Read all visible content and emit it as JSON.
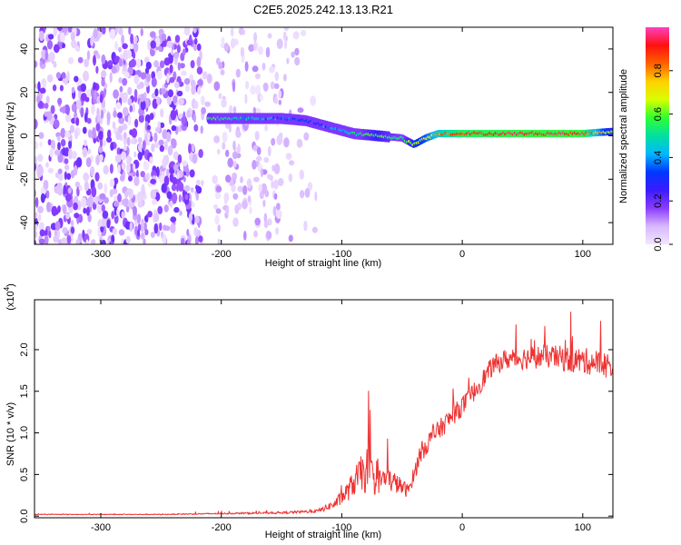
{
  "title": "C2E5.2025.242.13.13.R21",
  "colors": {
    "background": "#ffffff",
    "snr_line": "#ee3333",
    "colormap": [
      "#f2e6ff",
      "#d8b8ff",
      "#8a3cff",
      "#3a1cff",
      "#0038ff",
      "#00b8ff",
      "#00e0a0",
      "#30ff30",
      "#d8ff00",
      "#ffd000",
      "#ff6000",
      "#ff1010",
      "#ff40c0"
    ]
  },
  "chart_data": [
    {
      "id": "spectrogram",
      "type": "heatmap",
      "title": "C2E5.2025.242.13.13.R21",
      "xlabel": "Height of straight line (km)",
      "ylabel": "Frequency (Hz)",
      "xlim": [
        -355,
        125
      ],
      "ylim": [
        -50,
        50
      ],
      "x_ticks": [
        -300,
        -200,
        -100,
        0,
        100
      ],
      "y_ticks": [
        -40,
        -20,
        0,
        20,
        40
      ],
      "colorbar": {
        "label": "Normalized spectral amplitude",
        "range": [
          0,
          1
        ],
        "ticks": [
          0.0,
          0.2,
          0.4,
          0.6,
          0.8
        ]
      },
      "noise_region_x": [
        -355,
        -140
      ],
      "signal_ridge": {
        "x": [
          -210,
          -180,
          -150,
          -130,
          -110,
          -90,
          -70,
          -50,
          -40,
          -30,
          -20,
          0,
          50,
          100,
          125
        ],
        "frequency": [
          8,
          8,
          8,
          7,
          4,
          1,
          0,
          -1,
          -4,
          -1,
          1,
          1,
          1,
          1,
          2
        ],
        "amplitude": [
          0.55,
          0.45,
          0.35,
          0.3,
          0.38,
          0.5,
          0.6,
          0.5,
          0.65,
          0.7,
          0.8,
          0.9,
          0.92,
          0.92,
          0.6
        ]
      }
    },
    {
      "id": "snr",
      "type": "line",
      "xlabel": "Height of straight line (km)",
      "ylabel": "SNR (10 * v/v)",
      "y_scale_label": "(x10",
      "y_scale_exponent": "4",
      "xlim": [
        -355,
        125
      ],
      "ylim": [
        -0.02,
        2.6
      ],
      "x_ticks": [
        -300,
        -200,
        -100,
        0,
        100
      ],
      "y_ticks": [
        0.0,
        0.5,
        1.0,
        1.5,
        2.0
      ],
      "y_tick_labels": [
        "0.0",
        "0.5",
        "1.0",
        "1.5",
        "2.0"
      ],
      "series": [
        {
          "name": "SNR",
          "x": [
            -355,
            -300,
            -250,
            -200,
            -150,
            -120,
            -105,
            -95,
            -85,
            -78,
            -72,
            -65,
            -58,
            -50,
            -45,
            -40,
            -35,
            -25,
            -15,
            -5,
            5,
            15,
            25,
            35,
            50,
            70,
            90,
            110,
            125
          ],
          "y": [
            0.02,
            0.02,
            0.02,
            0.03,
            0.04,
            0.06,
            0.15,
            0.3,
            0.5,
            0.55,
            0.4,
            0.45,
            0.42,
            0.35,
            0.3,
            0.5,
            0.75,
            0.95,
            1.1,
            1.25,
            1.4,
            1.6,
            1.8,
            1.88,
            1.9,
            1.92,
            1.88,
            1.85,
            1.8
          ],
          "noise": [
            0.004,
            0.004,
            0.005,
            0.008,
            0.012,
            0.02,
            0.06,
            0.12,
            0.2,
            0.3,
            0.15,
            0.15,
            0.14,
            0.1,
            0.08,
            0.1,
            0.12,
            0.12,
            0.12,
            0.12,
            0.12,
            0.12,
            0.12,
            0.12,
            0.14,
            0.14,
            0.16,
            0.16,
            0.16
          ]
        }
      ]
    }
  ]
}
